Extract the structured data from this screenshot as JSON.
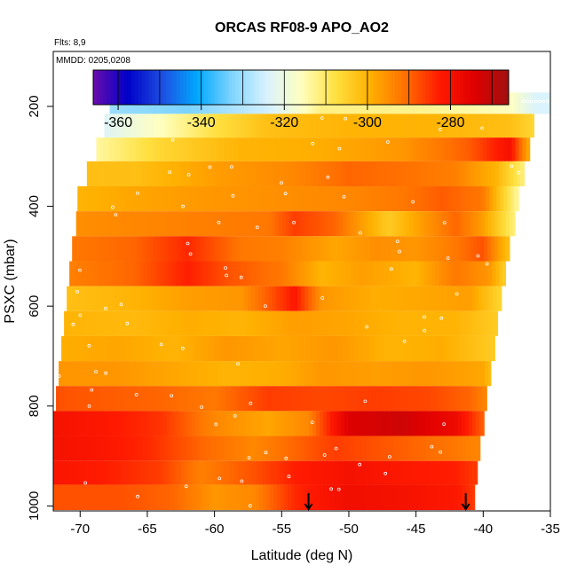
{
  "flights_note": "Flts: 8,9",
  "mmdd_note": "MMDD: 0205,0208",
  "colors": {
    "scale": [
      "#6a0dad",
      "#0000c8",
      "#1e4fe0",
      "#00a8ff",
      "#7fd4ff",
      "#d8f2ff",
      "#ffffc0",
      "#ffe040",
      "#ffb000",
      "#ff7000",
      "#ff1a00",
      "#e00000",
      "#a01010"
    ],
    "marker": "#ffffff",
    "frame": "#000000"
  },
  "chart_data": {
    "type": "heatmap",
    "title": "ORCAS RF08-9 APO_AO2",
    "xlabel": "Latitude (deg N)",
    "ylabel": "PSXC (mbar)",
    "xlim": [
      -72,
      -35
    ],
    "ylim": [
      1010,
      90
    ],
    "y_reversed": true,
    "x_ticks": [
      -70,
      -65,
      -60,
      -55,
      -50,
      -45,
      -40,
      -35
    ],
    "y_ticks": [
      200,
      400,
      600,
      800,
      1000
    ],
    "colorbar": {
      "range": [
        -366,
        -266
      ],
      "ticks": [
        -360,
        -340,
        -320,
        -300,
        -280
      ],
      "placement": "top"
    },
    "arrows_latitude": [
      -53,
      -41.3
    ],
    "rows": [
      {
        "p": 190,
        "x0": -67.8,
        "x1": -35.0,
        "v": [
          [
            -67.8,
            -330
          ],
          [
            -62,
            -333
          ],
          [
            -56,
            -325
          ],
          [
            -52,
            -312
          ],
          [
            -44,
            -313
          ],
          [
            -38,
            -316
          ],
          [
            -36,
            -324
          ]
        ]
      },
      {
        "p": 240,
        "x0": -68.2,
        "x1": -36.2,
        "v": [
          [
            -68.2,
            -323
          ],
          [
            -64,
            -316
          ],
          [
            -60,
            -308
          ],
          [
            -56,
            -302
          ],
          [
            -50,
            -300
          ],
          [
            -44,
            -300
          ],
          [
            -38,
            -302
          ],
          [
            -36.2,
            -306
          ]
        ]
      },
      {
        "p": 285,
        "x0": -68.8,
        "x1": -36.5,
        "v": [
          [
            -68.8,
            -314
          ],
          [
            -64,
            -306
          ],
          [
            -58,
            -300
          ],
          [
            -52,
            -299
          ],
          [
            -46,
            -296
          ],
          [
            -41,
            -289
          ],
          [
            -38,
            -280
          ],
          [
            -36.5,
            -300
          ]
        ]
      },
      {
        "p": 335,
        "x0": -69.5,
        "x1": -36.9,
        "v": [
          [
            -69.5,
            -302
          ],
          [
            -66,
            -302
          ],
          [
            -60,
            -297
          ],
          [
            -54,
            -294
          ],
          [
            -50,
            -290
          ],
          [
            -46,
            -291
          ],
          [
            -42,
            -293
          ],
          [
            -39,
            -300
          ],
          [
            -36.9,
            -312
          ]
        ]
      },
      {
        "p": 385,
        "x0": -70.2,
        "x1": -37.3,
        "v": [
          [
            -70.2,
            -300
          ],
          [
            -66,
            -298
          ],
          [
            -60,
            -296
          ],
          [
            -55,
            -295
          ],
          [
            -50,
            -294
          ],
          [
            -46,
            -292
          ],
          [
            -43,
            -289
          ],
          [
            -40,
            -292
          ],
          [
            -37.3,
            -315
          ]
        ]
      },
      {
        "p": 435,
        "x0": -70.3,
        "x1": -37.6,
        "v": [
          [
            -70.3,
            -295
          ],
          [
            -66,
            -294
          ],
          [
            -61,
            -293
          ],
          [
            -56,
            -292
          ],
          [
            -54,
            -286
          ],
          [
            -51,
            -290
          ],
          [
            -47,
            -304
          ],
          [
            -45,
            -298
          ],
          [
            -42,
            -290
          ],
          [
            -40,
            -297
          ],
          [
            -37.6,
            -312
          ]
        ]
      },
      {
        "p": 485,
        "x0": -70.6,
        "x1": -38.0,
        "v": [
          [
            -70.6,
            -292
          ],
          [
            -66,
            -290
          ],
          [
            -62,
            -284
          ],
          [
            -58,
            -292
          ],
          [
            -55,
            -293
          ],
          [
            -51,
            -298
          ],
          [
            -48,
            -295
          ],
          [
            -45,
            -296
          ],
          [
            -42,
            -292
          ],
          [
            -40,
            -288
          ],
          [
            -38,
            -303
          ]
        ]
      },
      {
        "p": 535,
        "x0": -70.8,
        "x1": -38.3,
        "v": [
          [
            -70.8,
            -293
          ],
          [
            -66,
            -290
          ],
          [
            -62,
            -283
          ],
          [
            -59,
            -288
          ],
          [
            -55,
            -292
          ],
          [
            -52,
            -300
          ],
          [
            -49,
            -297
          ],
          [
            -45,
            -300
          ],
          [
            -42,
            -292
          ],
          [
            -39.5,
            -296
          ],
          [
            -38.3,
            -305
          ]
        ]
      },
      {
        "p": 585,
        "x0": -71.0,
        "x1": -38.6,
        "v": [
          [
            -71.0,
            -302
          ],
          [
            -66,
            -300
          ],
          [
            -62,
            -297
          ],
          [
            -58,
            -296
          ],
          [
            -54,
            -282
          ],
          [
            -52,
            -296
          ],
          [
            -48,
            -299
          ],
          [
            -44,
            -298
          ],
          [
            -41,
            -297
          ],
          [
            -38.6,
            -306
          ]
        ]
      },
      {
        "p": 635,
        "x0": -71.2,
        "x1": -38.9,
        "v": [
          [
            -71.2,
            -300
          ],
          [
            -66,
            -301
          ],
          [
            -62,
            -299
          ],
          [
            -58,
            -300
          ],
          [
            -54,
            -297
          ],
          [
            -50,
            -298
          ],
          [
            -46,
            -300
          ],
          [
            -42,
            -300
          ],
          [
            -38.9,
            -304
          ]
        ]
      },
      {
        "p": 685,
        "x0": -71.4,
        "x1": -39.1,
        "v": [
          [
            -71.4,
            -299
          ],
          [
            -67,
            -298
          ],
          [
            -63,
            -300
          ],
          [
            -59,
            -296
          ],
          [
            -55,
            -298
          ],
          [
            -51,
            -296
          ],
          [
            -47,
            -300
          ],
          [
            -43,
            -299
          ],
          [
            -39.1,
            -304
          ]
        ]
      },
      {
        "p": 735,
        "x0": -71.6,
        "x1": -39.4,
        "v": [
          [
            -71.6,
            -296
          ],
          [
            -67,
            -296
          ],
          [
            -63,
            -298
          ],
          [
            -59,
            -300
          ],
          [
            -55,
            -299
          ],
          [
            -52,
            -296
          ],
          [
            -48,
            -297
          ],
          [
            -44,
            -296
          ],
          [
            -40,
            -298
          ],
          [
            -39.4,
            -302
          ]
        ]
      },
      {
        "p": 785,
        "x0": -71.8,
        "x1": -39.7,
        "v": [
          [
            -71.8,
            -288
          ],
          [
            -68,
            -289
          ],
          [
            -64,
            -290
          ],
          [
            -60,
            -292
          ],
          [
            -56,
            -286
          ],
          [
            -52,
            -287
          ],
          [
            -48,
            -286
          ],
          [
            -44,
            -287
          ],
          [
            -41,
            -290
          ],
          [
            -39.7,
            -294
          ]
        ]
      },
      {
        "p": 835,
        "x0": -72.0,
        "x1": -39.9,
        "v": [
          [
            -72.0,
            -280
          ],
          [
            -68,
            -282
          ],
          [
            -64,
            -285
          ],
          [
            -60,
            -294
          ],
          [
            -56,
            -298
          ],
          [
            -53,
            -294
          ],
          [
            -50,
            -274
          ],
          [
            -46,
            -272
          ],
          [
            -42,
            -278
          ],
          [
            -39.9,
            -290
          ]
        ]
      },
      {
        "p": 885,
        "x0": -72.0,
        "x1": -40.2,
        "v": [
          [
            -72.0,
            -280
          ],
          [
            -69,
            -281
          ],
          [
            -65,
            -284
          ],
          [
            -61,
            -290
          ],
          [
            -57,
            -294
          ],
          [
            -54,
            -290
          ],
          [
            -51,
            -286
          ],
          [
            -48,
            -288
          ],
          [
            -45,
            -290
          ],
          [
            -42,
            -292
          ],
          [
            -40.2,
            -294
          ]
        ]
      },
      {
        "p": 935,
        "x0": -72.0,
        "x1": -40.4,
        "v": [
          [
            -72.0,
            -281
          ],
          [
            -68,
            -283
          ],
          [
            -64,
            -286
          ],
          [
            -61,
            -293
          ],
          [
            -57,
            -288
          ],
          [
            -54,
            -283
          ],
          [
            -50,
            -280
          ],
          [
            -46,
            -282
          ],
          [
            -42,
            -283
          ],
          [
            -40.4,
            -286
          ]
        ]
      },
      {
        "p": 980,
        "x0": -72.0,
        "x1": -40.6,
        "v": [
          [
            -72.0,
            -288
          ],
          [
            -67,
            -288
          ],
          [
            -63,
            -290
          ],
          [
            -60,
            -296
          ],
          [
            -57,
            -294
          ],
          [
            -54,
            -284
          ],
          [
            -50,
            -279
          ],
          [
            -46,
            -280
          ],
          [
            -42,
            -282
          ],
          [
            -40.6,
            -286
          ]
        ]
      }
    ]
  }
}
